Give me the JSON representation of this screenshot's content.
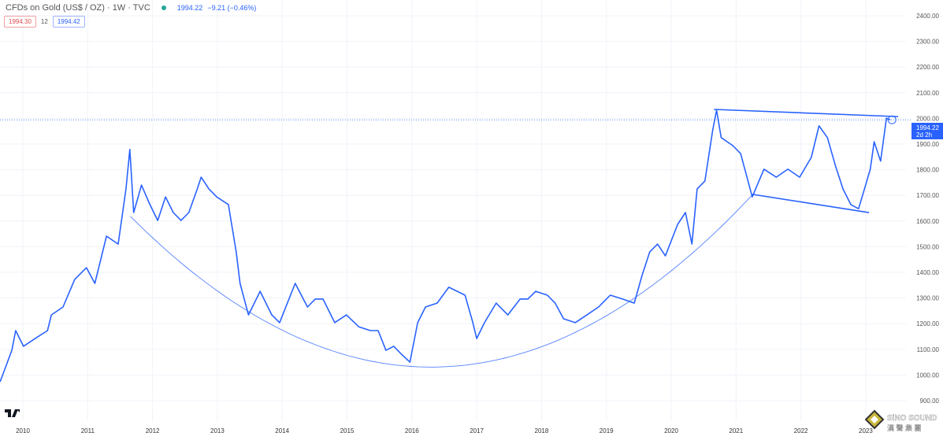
{
  "header": {
    "title": "CFDs on Gold (US$ / OZ) · 1W · TVC",
    "last": "1994.22",
    "change": "−9.21 (−0.46%)",
    "bid": "1994.30",
    "spread": "12",
    "ask": "1994.42"
  },
  "price_label": {
    "value": "1994.22",
    "countdown": "2d 2h"
  },
  "logo": "TV",
  "watermark": {
    "name": "SiNO SOUND",
    "sub": "漢 聲 集 團"
  },
  "colors": {
    "line": "#2962ff",
    "accent": "#2962ff",
    "grid": "#f0f3fa"
  },
  "chart_data": {
    "type": "line",
    "title": "CFDs on Gold (US$ / OZ) · 1W · TVC",
    "xlabel": "",
    "ylabel": "",
    "xlim": [
      2009.65,
      2023.85
    ],
    "ylim": [
      860,
      2470
    ],
    "y_axis_position": "right",
    "grid": true,
    "x_ticks": [
      "2010",
      "2011",
      "2012",
      "2013",
      "2014",
      "2015",
      "2016",
      "2017",
      "2018",
      "2019",
      "2020",
      "2021",
      "2022",
      "2023"
    ],
    "y_ticks": [
      "2400.00",
      "2300.00",
      "2200.00",
      "2100.00",
      "2000.00",
      "1900.00",
      "1800.00",
      "1700.00",
      "1600.00",
      "1500.00",
      "1400.00",
      "1300.00",
      "1200.00",
      "1100.00",
      "1000.00",
      "900.00"
    ],
    "series": [
      {
        "points": [
          [
            2009.65,
            974
          ],
          [
            2009.83,
            1096
          ],
          [
            2009.89,
            1173
          ],
          [
            2010.01,
            1112
          ],
          [
            2010.19,
            1142
          ],
          [
            2010.38,
            1173
          ],
          [
            2010.44,
            1234
          ],
          [
            2010.62,
            1265
          ],
          [
            2010.8,
            1372
          ],
          [
            2010.98,
            1418
          ],
          [
            2011.11,
            1357
          ],
          [
            2011.29,
            1541
          ],
          [
            2011.47,
            1510
          ],
          [
            2011.59,
            1725
          ],
          [
            2011.65,
            1879
          ],
          [
            2011.71,
            1633
          ],
          [
            2011.83,
            1740
          ],
          [
            2011.96,
            1664
          ],
          [
            2012.08,
            1602
          ],
          [
            2012.2,
            1694
          ],
          [
            2012.32,
            1633
          ],
          [
            2012.44,
            1602
          ],
          [
            2012.56,
            1633
          ],
          [
            2012.69,
            1725
          ],
          [
            2012.75,
            1771
          ],
          [
            2012.87,
            1725
          ],
          [
            2012.99,
            1694
          ],
          [
            2013.17,
            1664
          ],
          [
            2013.29,
            1480
          ],
          [
            2013.35,
            1357
          ],
          [
            2013.48,
            1234
          ],
          [
            2013.66,
            1326
          ],
          [
            2013.84,
            1234
          ],
          [
            2013.96,
            1204
          ],
          [
            2014.2,
            1357
          ],
          [
            2014.39,
            1265
          ],
          [
            2014.51,
            1296
          ],
          [
            2014.63,
            1296
          ],
          [
            2014.81,
            1204
          ],
          [
            2014.99,
            1234
          ],
          [
            2015.18,
            1188
          ],
          [
            2015.36,
            1173
          ],
          [
            2015.48,
            1173
          ],
          [
            2015.6,
            1096
          ],
          [
            2015.72,
            1112
          ],
          [
            2015.84,
            1081
          ],
          [
            2015.97,
            1050
          ],
          [
            2016.09,
            1204
          ],
          [
            2016.21,
            1265
          ],
          [
            2016.39,
            1280
          ],
          [
            2016.57,
            1342
          ],
          [
            2016.7,
            1326
          ],
          [
            2016.82,
            1311
          ],
          [
            2016.94,
            1204
          ],
          [
            2017.0,
            1142
          ],
          [
            2017.12,
            1204
          ],
          [
            2017.3,
            1280
          ],
          [
            2017.48,
            1234
          ],
          [
            2017.67,
            1296
          ],
          [
            2017.79,
            1296
          ],
          [
            2017.91,
            1326
          ],
          [
            2018.09,
            1311
          ],
          [
            2018.21,
            1280
          ],
          [
            2018.34,
            1219
          ],
          [
            2018.52,
            1204
          ],
          [
            2018.7,
            1234
          ],
          [
            2018.88,
            1265
          ],
          [
            2019.06,
            1311
          ],
          [
            2019.25,
            1296
          ],
          [
            2019.43,
            1280
          ],
          [
            2019.55,
            1388
          ],
          [
            2019.67,
            1480
          ],
          [
            2019.79,
            1510
          ],
          [
            2019.91,
            1464
          ],
          [
            2020.1,
            1587
          ],
          [
            2020.22,
            1633
          ],
          [
            2020.32,
            1510
          ],
          [
            2020.4,
            1725
          ],
          [
            2020.52,
            1756
          ],
          [
            2020.64,
            1955
          ],
          [
            2020.7,
            2032
          ],
          [
            2020.77,
            1925
          ],
          [
            2020.95,
            1894
          ],
          [
            2021.07,
            1863
          ],
          [
            2021.25,
            1694
          ],
          [
            2021.43,
            1802
          ],
          [
            2021.62,
            1771
          ],
          [
            2021.8,
            1802
          ],
          [
            2021.98,
            1771
          ],
          [
            2022.16,
            1848
          ],
          [
            2022.28,
            1971
          ],
          [
            2022.41,
            1925
          ],
          [
            2022.53,
            1818
          ],
          [
            2022.65,
            1725
          ],
          [
            2022.77,
            1664
          ],
          [
            2022.89,
            1648
          ],
          [
            2022.98,
            1725
          ],
          [
            2023.07,
            1802
          ],
          [
            2023.13,
            1909
          ],
          [
            2023.23,
            1833
          ],
          [
            2023.32,
            2001
          ],
          [
            2023.38,
            1994.22
          ]
        ]
      }
    ],
    "annotations": {
      "last_price": 1994.22,
      "upper_trendline": [
        [
          2020.66,
          2035
        ],
        [
          2023.5,
          2007
        ]
      ],
      "lower_trendline": [
        [
          2021.25,
          1704
        ],
        [
          2023.05,
          1633
        ]
      ],
      "cup_arc": [
        [
          2011.66,
          1618
        ],
        [
          2015.9,
          1035
        ],
        [
          2021.27,
          1707
        ]
      ]
    }
  }
}
